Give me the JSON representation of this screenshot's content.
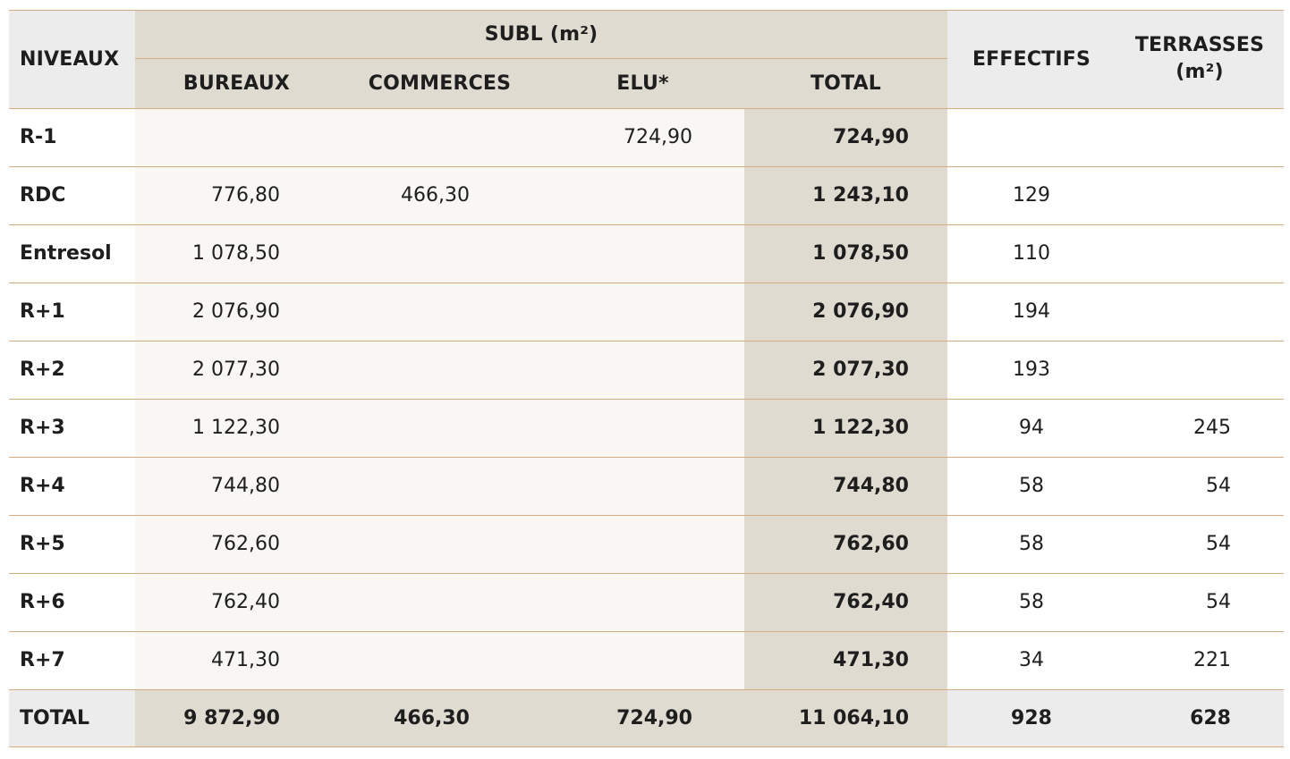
{
  "header": {
    "niveaux": "NIVEAUX",
    "subl": "SUBL (m²)",
    "bureaux": "BUREAUX",
    "commerces": "COMMERCES",
    "elu": "ELU*",
    "total": "TOTAL",
    "effectifs": "EFFECTIFS",
    "terrasses_line1": "TERRASSES",
    "terrasses_line2": "(m²)"
  },
  "rows": [
    {
      "niveau": "R-1",
      "bureaux": "",
      "commerces": "",
      "elu": "724,90",
      "total": "724,90",
      "effectifs": "",
      "terrasses": ""
    },
    {
      "niveau": "RDC",
      "bureaux": "776,80",
      "commerces": "466,30",
      "elu": "",
      "total": "1 243,10",
      "effectifs": "129",
      "terrasses": ""
    },
    {
      "niveau": "Entresol",
      "bureaux": "1 078,50",
      "commerces": "",
      "elu": "",
      "total": "1 078,50",
      "effectifs": "110",
      "terrasses": ""
    },
    {
      "niveau": "R+1",
      "bureaux": "2 076,90",
      "commerces": "",
      "elu": "",
      "total": "2 076,90",
      "effectifs": "194",
      "terrasses": ""
    },
    {
      "niveau": "R+2",
      "bureaux": "2 077,30",
      "commerces": "",
      "elu": "",
      "total": "2 077,30",
      "effectifs": "193",
      "terrasses": ""
    },
    {
      "niveau": "R+3",
      "bureaux": "1 122,30",
      "commerces": "",
      "elu": "",
      "total": "1 122,30",
      "effectifs": "94",
      "terrasses": "245"
    },
    {
      "niveau": "R+4",
      "bureaux": "744,80",
      "commerces": "",
      "elu": "",
      "total": "744,80",
      "effectifs": "58",
      "terrasses": "54"
    },
    {
      "niveau": "R+5",
      "bureaux": "762,60",
      "commerces": "",
      "elu": "",
      "total": "762,60",
      "effectifs": "58",
      "terrasses": "54"
    },
    {
      "niveau": "R+6",
      "bureaux": "762,40",
      "commerces": "",
      "elu": "",
      "total": "762,40",
      "effectifs": "58",
      "terrasses": "54"
    },
    {
      "niveau": "R+7",
      "bureaux": "471,30",
      "commerces": "",
      "elu": "",
      "total": "471,30",
      "effectifs": "34",
      "terrasses": "221"
    }
  ],
  "totals": {
    "label": "TOTAL",
    "bureaux": "9 872,90",
    "commerces": "466,30",
    "elu": "724,90",
    "total": "11 064,10",
    "effectifs": "928",
    "terrasses": "628"
  },
  "colors": {
    "header_grey": "#ececec",
    "tan": "#e0dbd1",
    "cream": "#f8f7f3",
    "rule": "#d6ad82"
  }
}
